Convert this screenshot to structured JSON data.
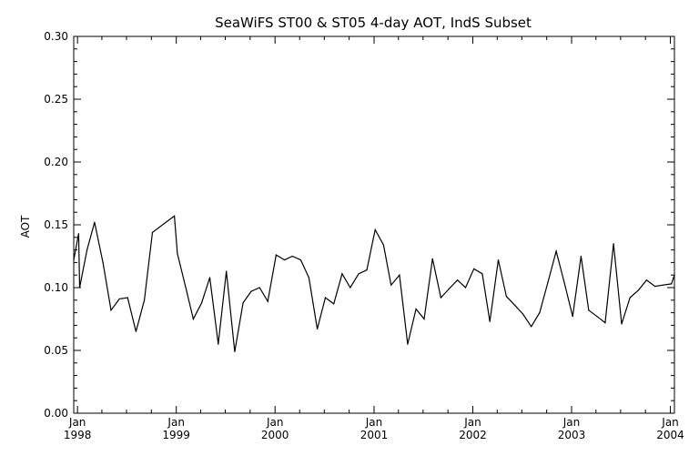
{
  "chart_data": {
    "type": "line",
    "title": "SeaWiFS ST00 & ST05 4-day AOT, IndS Subset",
    "ylabel": "AOT",
    "xlabel": "",
    "ylim": [
      0.0,
      0.3
    ],
    "xlim": [
      "1997-12-18",
      "2004-01-16"
    ],
    "y_ticks": [
      "0.00",
      "0.05",
      "0.10",
      "0.15",
      "0.20",
      "0.25",
      "0.30"
    ],
    "x_ticks": [
      {
        "month": "Jan",
        "year": "1998",
        "date": "1998-01-01"
      },
      {
        "month": "Jan",
        "year": "1999",
        "date": "1999-01-01"
      },
      {
        "month": "Jan",
        "year": "2000",
        "date": "2000-01-01"
      },
      {
        "month": "Jan",
        "year": "2001",
        "date": "2001-01-01"
      },
      {
        "month": "Jan",
        "year": "2002",
        "date": "2002-01-01"
      },
      {
        "month": "Jan",
        "year": "2003",
        "date": "2003-01-01"
      },
      {
        "month": "Jan",
        "year": "2004",
        "date": "2004-01-01"
      }
    ],
    "grid": false,
    "series": [
      {
        "color": "#000000",
        "points": [
          [
            "1997-12-18",
            0.122
          ],
          [
            "1998-01-05",
            0.143
          ],
          [
            "1998-01-09",
            0.1
          ],
          [
            "1998-02-05",
            0.13
          ],
          [
            "1998-03-05",
            0.152
          ],
          [
            "1998-04-05",
            0.12
          ],
          [
            "1998-05-05",
            0.082
          ],
          [
            "1998-06-05",
            0.091
          ],
          [
            "1998-07-05",
            0.092
          ],
          [
            "1998-08-05",
            0.065
          ],
          [
            "1998-09-05",
            0.09
          ],
          [
            "1998-10-05",
            0.144
          ],
          [
            "1998-12-25",
            0.157
          ],
          [
            "1999-01-05",
            0.127
          ],
          [
            "1999-02-05",
            0.1
          ],
          [
            "1999-03-05",
            0.075
          ],
          [
            "1999-04-05",
            0.088
          ],
          [
            "1999-05-05",
            0.108
          ],
          [
            "1999-06-05",
            0.055
          ],
          [
            "1999-07-05",
            0.113
          ],
          [
            "1999-08-05",
            0.049
          ],
          [
            "1999-09-05",
            0.088
          ],
          [
            "1999-10-05",
            0.097
          ],
          [
            "1999-11-05",
            0.1
          ],
          [
            "1999-12-05",
            0.089
          ],
          [
            "2000-01-05",
            0.126
          ],
          [
            "2000-02-05",
            0.122
          ],
          [
            "2000-03-05",
            0.125
          ],
          [
            "2000-04-05",
            0.122
          ],
          [
            "2000-05-05",
            0.108
          ],
          [
            "2000-06-05",
            0.067
          ],
          [
            "2000-07-05",
            0.092
          ],
          [
            "2000-08-05",
            0.087
          ],
          [
            "2000-09-05",
            0.111
          ],
          [
            "2000-10-05",
            0.1
          ],
          [
            "2000-11-05",
            0.111
          ],
          [
            "2000-12-05",
            0.114
          ],
          [
            "2001-01-05",
            0.146
          ],
          [
            "2001-02-05",
            0.134
          ],
          [
            "2001-03-05",
            0.102
          ],
          [
            "2001-04-05",
            0.11
          ],
          [
            "2001-05-05",
            0.055
          ],
          [
            "2001-06-05",
            0.083
          ],
          [
            "2001-07-05",
            0.075
          ],
          [
            "2001-08-05",
            0.123
          ],
          [
            "2001-09-05",
            0.092
          ],
          [
            "2001-10-05",
            0.099
          ],
          [
            "2001-11-05",
            0.106
          ],
          [
            "2001-12-05",
            0.1
          ],
          [
            "2002-01-05",
            0.115
          ],
          [
            "2002-02-05",
            0.111
          ],
          [
            "2002-03-05",
            0.073
          ],
          [
            "2002-04-05",
            0.122
          ],
          [
            "2002-05-05",
            0.093
          ],
          [
            "2002-06-05",
            0.086
          ],
          [
            "2002-07-05",
            0.079
          ],
          [
            "2002-08-05",
            0.069
          ],
          [
            "2002-09-05",
            0.08
          ],
          [
            "2002-10-05",
            0.104
          ],
          [
            "2002-11-05",
            0.129
          ],
          [
            "2002-12-05",
            0.104
          ],
          [
            "2003-01-05",
            0.077
          ],
          [
            "2003-02-05",
            0.125
          ],
          [
            "2003-03-05",
            0.082
          ],
          [
            "2003-04-05",
            0.077
          ],
          [
            "2003-05-05",
            0.072
          ],
          [
            "2003-06-05",
            0.135
          ],
          [
            "2003-07-05",
            0.071
          ],
          [
            "2003-08-05",
            0.092
          ],
          [
            "2003-09-05",
            0.098
          ],
          [
            "2003-10-05",
            0.106
          ],
          [
            "2003-11-05",
            0.101
          ],
          [
            "2003-12-05",
            0.102
          ],
          [
            "2004-01-05",
            0.103
          ],
          [
            "2004-01-16",
            0.11
          ]
        ]
      }
    ]
  }
}
